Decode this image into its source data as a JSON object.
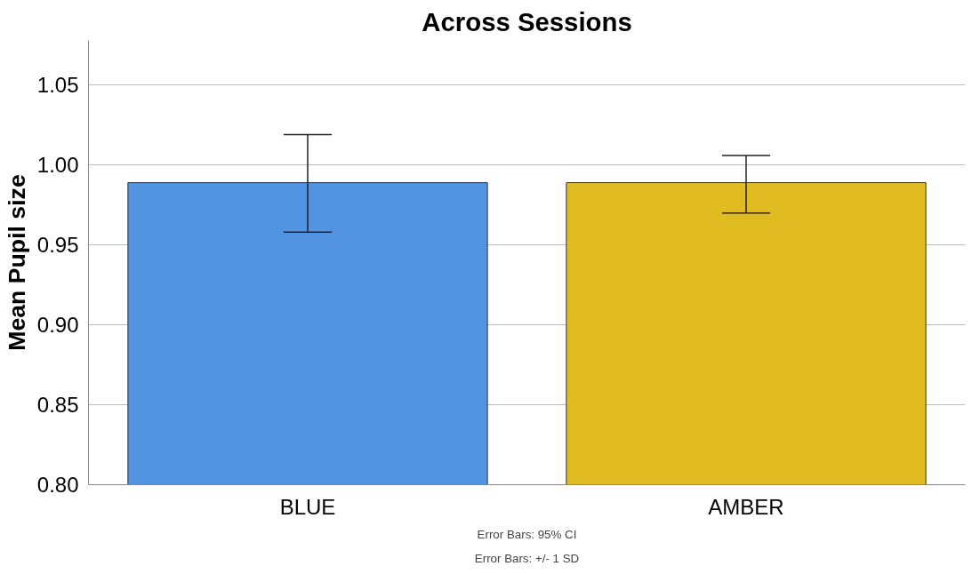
{
  "chart_data": {
    "type": "bar",
    "title": "Across Sessions",
    "ylabel": "Mean Pupil size",
    "categories": [
      "BLUE",
      "AMBER"
    ],
    "values": [
      0.989,
      0.989
    ],
    "colors": [
      "#5294e2",
      "#e0bb22"
    ],
    "errors": [
      [
        0.958,
        1.019
      ],
      [
        0.97,
        1.006
      ]
    ],
    "ylim": [
      0.8,
      1.078
    ],
    "yticks": [
      {
        "value": 0.8,
        "label": "0.80"
      },
      {
        "value": 0.85,
        "label": "0.85"
      },
      {
        "value": 0.9,
        "label": "0.90"
      },
      {
        "value": 0.95,
        "label": "0.95"
      },
      {
        "value": 1.0,
        "label": "1.00"
      },
      {
        "value": 1.05,
        "label": "1.05"
      }
    ],
    "grid": "y",
    "annotations": [
      "Error Bars: 95% CI",
      "Error Bars: +/- 1 SD"
    ]
  }
}
